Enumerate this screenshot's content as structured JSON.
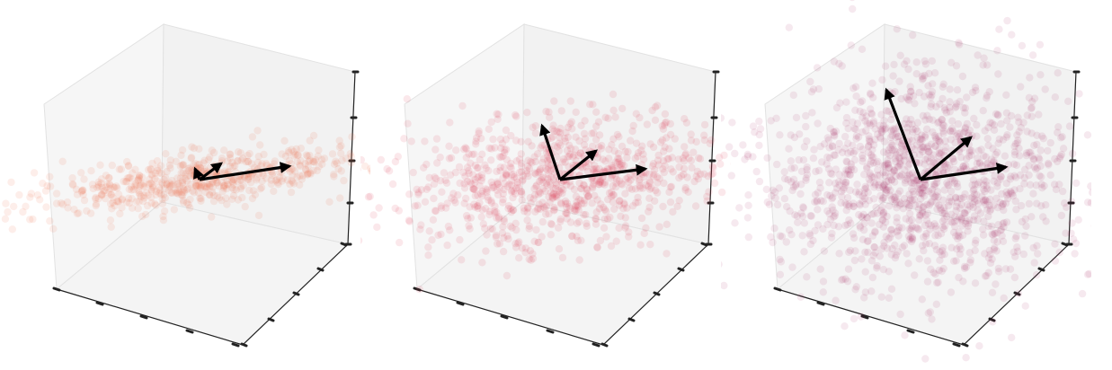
{
  "figure": {
    "pane_colors": {
      "back": "#f2f2f2",
      "side": "#f6f6f6",
      "floor": "#f4f4f4",
      "edge": "#e2e2e2"
    },
    "axis_color": "#222222",
    "arrow_color": "#000000"
  },
  "chart_data": [
    {
      "type": "scatter",
      "title": "",
      "grid": false,
      "point_color": "#f07455",
      "point_opacity": 0.12,
      "n_points": 600,
      "spread": [
        1.6,
        0.55,
        0.25
      ],
      "arrows": [
        {
          "dx": 1.0,
          "dy": -0.15,
          "dz": 0.0
        },
        {
          "dx": 0.24,
          "dy": -0.18,
          "dz": 0.0
        },
        {
          "dx": -0.05,
          "dy": -0.12,
          "dz": 0.0
        }
      ]
    },
    {
      "type": "scatter",
      "title": "",
      "grid": false,
      "point_color": "#e0455a",
      "point_opacity": 0.12,
      "n_points": 900,
      "spread": [
        1.55,
        1.0,
        0.7
      ],
      "arrows": [
        {
          "dx": 0.95,
          "dy": -0.12,
          "dz": 0.0
        },
        {
          "dx": 0.4,
          "dy": -0.32,
          "dz": 0.0
        },
        {
          "dx": -0.2,
          "dy": -0.6,
          "dz": 0.0
        }
      ]
    },
    {
      "type": "scatter",
      "title": "",
      "grid": false,
      "point_color": "#a8245f",
      "point_opacity": 0.1,
      "n_points": 1400,
      "spread": [
        1.45,
        1.55,
        1.2
      ],
      "arrows": [
        {
          "dx": 0.95,
          "dy": -0.14,
          "dz": 0.0
        },
        {
          "dx": 0.56,
          "dy": -0.47,
          "dz": 0.0
        },
        {
          "dx": -0.38,
          "dy": -1.0,
          "dz": 0.0
        }
      ]
    }
  ]
}
